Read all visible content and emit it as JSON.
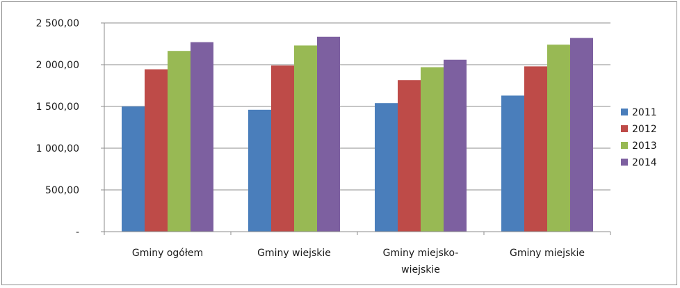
{
  "chart_data": {
    "type": "bar",
    "categories": [
      [
        "Gminy ogółem"
      ],
      [
        "Gminy wiejskie"
      ],
      [
        "Gminy miejsko-",
        "wiejskie"
      ],
      [
        "Gminy miejskie"
      ]
    ],
    "series": [
      {
        "name": "2011",
        "color": "#4a7ebb",
        "values": [
          1500,
          1460,
          1540,
          1630
        ]
      },
      {
        "name": "2012",
        "color": "#be4b48",
        "values": [
          1945,
          1990,
          1815,
          1980
        ]
      },
      {
        "name": "2013",
        "color": "#98b954",
        "values": [
          2165,
          2230,
          1970,
          2240
        ]
      },
      {
        "name": "2014",
        "color": "#7d60a0",
        "values": [
          2270,
          2335,
          2060,
          2320
        ]
      }
    ],
    "y_ticks": [
      {
        "value": 0,
        "label": "-"
      },
      {
        "value": 500,
        "label": "500,00"
      },
      {
        "value": 1000,
        "label": "1 000,00"
      },
      {
        "value": 1500,
        "label": "1 500,00"
      },
      {
        "value": 2000,
        "label": "2 000,00"
      },
      {
        "value": 2500,
        "label": "2 500,00"
      }
    ],
    "ylim": [
      0,
      2500
    ],
    "grid": true,
    "legend_position": "right",
    "title": "",
    "xlabel": "",
    "ylabel": ""
  },
  "colors": {
    "gridline": "#8c8c8c",
    "axis": "#8c8c8c",
    "frame": "#8c8c8c"
  }
}
